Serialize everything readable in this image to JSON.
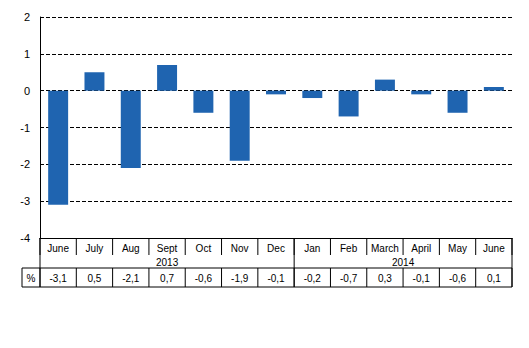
{
  "chart_data": {
    "type": "bar",
    "categories": [
      "June",
      "July",
      "Aug",
      "Sept",
      "Oct",
      "Nov",
      "Dec",
      "Jan",
      "Feb",
      "March",
      "April",
      "May",
      "June"
    ],
    "values": [
      -3.1,
      0.5,
      -2.1,
      0.7,
      -0.6,
      -1.9,
      -0.1,
      -0.2,
      -0.7,
      0.3,
      -0.1,
      -0.6,
      0.1
    ],
    "value_labels": [
      "-3,1",
      "0,5",
      "-2,1",
      "0,7",
      "-0,6",
      "-1,9",
      "-0,1",
      "-0,2",
      "-0,7",
      "0,3",
      "-0,1",
      "-0,6",
      "0,1"
    ],
    "value_label_heading": "%",
    "category_groups": [
      {
        "label": "2013",
        "count": 7
      },
      {
        "label": "2014",
        "count": 6
      }
    ],
    "color": "#1f64b0",
    "ylim": [
      -4,
      2
    ],
    "yticks": [
      -4,
      -3,
      -2,
      -1,
      0,
      1,
      2
    ],
    "grid": true
  }
}
